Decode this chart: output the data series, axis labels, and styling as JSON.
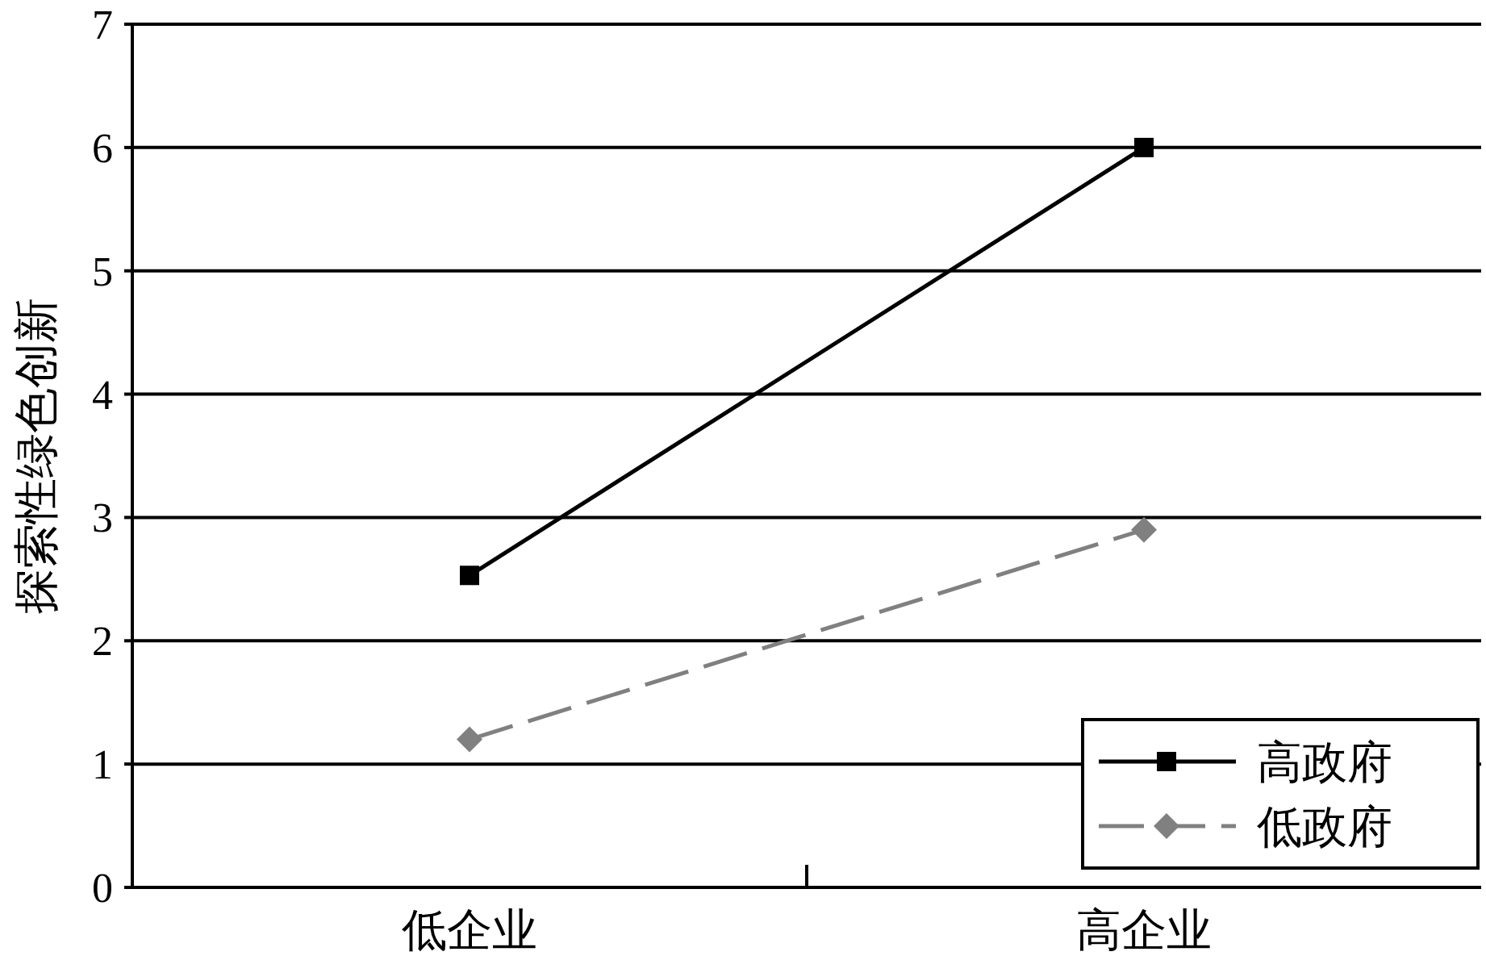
{
  "chart_data": {
    "type": "line",
    "ylabel": "探索性绿色创新",
    "categories": [
      "低企业",
      "高企业"
    ],
    "series": [
      {
        "name": "高政府",
        "color": "#000000",
        "values": [
          2.53,
          6.0
        ],
        "marker": "square",
        "line_style": "solid"
      },
      {
        "name": "低政府",
        "color": "#808080",
        "values": [
          1.2,
          2.9
        ],
        "marker": "diamond",
        "line_style": "dashed"
      }
    ],
    "ylim": [
      0,
      7
    ],
    "yticks": [
      0,
      1,
      2,
      3,
      4,
      5,
      6,
      7
    ],
    "grid": "y",
    "legend": "bottom right"
  }
}
